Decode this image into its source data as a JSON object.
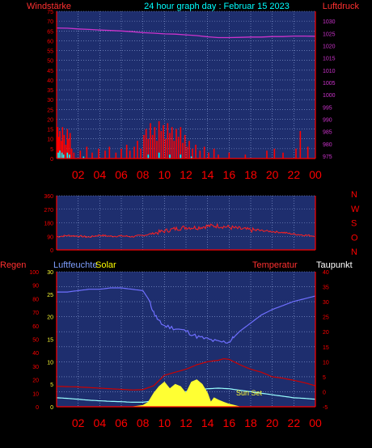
{
  "header": {
    "title": "24 hour graph day : Februar 15 2023",
    "left_label": "Windstärke",
    "right_label": "Luftdruck"
  },
  "colors": {
    "panel_bg": "#1e2e6e",
    "grid": "#8fa3d8",
    "axis_red": "#ff0000",
    "pressure": "#cc33cc",
    "wind": "#ff0000",
    "gust": "#00ffff",
    "direction": "#ff2020",
    "humidity": "#6f6fff",
    "temperature": "#cc0000",
    "dewpoint": "#99ffff",
    "solar": "#ffff33",
    "title": "#00ffff",
    "humidity_label": "#7f9fff",
    "solar_label": "#ffff00",
    "temperature_label": "#ff3030",
    "dewpoint_label": "#ffffff"
  },
  "x_tick_labels": [
    "02",
    "04",
    "06",
    "08",
    "10",
    "12",
    "14",
    "16",
    "18",
    "20",
    "22",
    "00"
  ],
  "chart_data": [
    {
      "type": "line",
      "name": "wind-pressure",
      "y_left": {
        "ticks": [
          "0",
          "5",
          "10",
          "15",
          "20",
          "25",
          "30",
          "35",
          "40",
          "45",
          "50",
          "55",
          "60",
          "65",
          "70",
          "75"
        ],
        "range": [
          0,
          75
        ]
      },
      "y_right": {
        "ticks": [
          "975",
          "980",
          "985",
          "990",
          "995",
          "1000",
          "1005",
          "1010",
          "1015",
          "1020",
          "1025",
          "1030"
        ],
        "range": [
          974,
          1034
        ]
      },
      "series": [
        {
          "key": "pressure",
          "axis": "right",
          "points": [
            [
              0,
              1027.2
            ],
            [
              1,
              1027.1
            ],
            [
              2,
              1026.8
            ],
            [
              3,
              1026.6
            ],
            [
              4,
              1026.4
            ],
            [
              5,
              1026.2
            ],
            [
              6,
              1026.0
            ],
            [
              7,
              1025.7
            ],
            [
              8,
              1025.3
            ],
            [
              9,
              1025.1
            ],
            [
              10,
              1024.8
            ],
            [
              11,
              1024.7
            ],
            [
              12,
              1024.4
            ],
            [
              13,
              1024.1
            ],
            [
              14,
              1023.6
            ],
            [
              15,
              1023.3
            ],
            [
              16,
              1023.3
            ],
            [
              17,
              1023.4
            ],
            [
              18,
              1023.5
            ],
            [
              19,
              1023.5
            ],
            [
              20,
              1023.7
            ],
            [
              21,
              1023.7
            ],
            [
              22,
              1023.9
            ],
            [
              23,
              1023.9
            ],
            [
              24,
              1023.8
            ]
          ]
        },
        {
          "key": "wind",
          "axis": "left",
          "style": "bars",
          "points": [
            [
              0.1,
              16
            ],
            [
              0.2,
              11
            ],
            [
              0.3,
              14
            ],
            [
              0.45,
              9
            ],
            [
              0.55,
              16
            ],
            [
              0.7,
              12
            ],
            [
              0.85,
              7
            ],
            [
              1.0,
              15
            ],
            [
              1.1,
              10
            ],
            [
              1.25,
              13
            ],
            [
              1.4,
              5
            ],
            [
              1.6,
              3
            ],
            [
              2.2,
              4
            ],
            [
              2.8,
              6
            ],
            [
              3.3,
              3
            ],
            [
              3.9,
              5
            ],
            [
              4.5,
              4
            ],
            [
              4.9,
              6
            ],
            [
              5.5,
              3
            ],
            [
              6.0,
              5
            ],
            [
              6.5,
              7
            ],
            [
              6.8,
              4
            ],
            [
              7.2,
              6
            ],
            [
              7.5,
              9
            ],
            [
              7.8,
              5
            ],
            [
              8.1,
              12
            ],
            [
              8.3,
              15
            ],
            [
              8.5,
              10
            ],
            [
              8.7,
              18
            ],
            [
              8.9,
              12
            ],
            [
              9.1,
              16
            ],
            [
              9.3,
              9
            ],
            [
              9.5,
              19
            ],
            [
              9.7,
              14
            ],
            [
              9.9,
              17
            ],
            [
              10.1,
              10
            ],
            [
              10.3,
              18
            ],
            [
              10.5,
              13
            ],
            [
              10.7,
              16
            ],
            [
              10.9,
              9
            ],
            [
              11.1,
              15
            ],
            [
              11.3,
              11
            ],
            [
              11.5,
              16
            ],
            [
              11.7,
              8
            ],
            [
              11.9,
              12
            ],
            [
              12.1,
              6
            ],
            [
              12.3,
              9
            ],
            [
              12.6,
              5
            ],
            [
              12.9,
              7
            ],
            [
              13.3,
              4
            ],
            [
              13.7,
              6
            ],
            [
              14.1,
              3
            ],
            [
              14.6,
              5
            ],
            [
              15.0,
              2
            ],
            [
              16.0,
              3
            ],
            [
              17.5,
              2
            ],
            [
              19.5,
              4
            ],
            [
              20.2,
              5
            ],
            [
              21.0,
              3
            ],
            [
              22.2,
              5
            ],
            [
              22.6,
              14
            ],
            [
              23.3,
              6
            ]
          ]
        },
        {
          "key": "gust",
          "axis": "left",
          "style": "bars",
          "points": [
            [
              0.15,
              3
            ],
            [
              0.3,
              4
            ],
            [
              0.5,
              3
            ],
            [
              0.65,
              2
            ],
            [
              1.0,
              3
            ],
            [
              1.2,
              2
            ],
            [
              2.5,
              1
            ],
            [
              8.5,
              2
            ],
            [
              9.5,
              3
            ],
            [
              10.5,
              2
            ],
            [
              11.5,
              2
            ],
            [
              12.5,
              1
            ]
          ]
        }
      ]
    },
    {
      "type": "scatter",
      "name": "wind-direction",
      "y_left": {
        "ticks": [
          "0",
          "90",
          "180",
          "270",
          "360"
        ],
        "range": [
          0,
          360
        ]
      },
      "y_right": {
        "ticks": [
          "N",
          "W",
          "S",
          "O",
          "N"
        ]
      },
      "series": [
        {
          "key": "direction",
          "axis": "left",
          "points": [
            [
              0,
              88
            ],
            [
              1,
              95
            ],
            [
              2,
              92
            ],
            [
              3,
              85
            ],
            [
              4,
              98
            ],
            [
              5,
              90
            ],
            [
              6,
              93
            ],
            [
              7,
              88
            ],
            [
              8,
              96
            ],
            [
              9,
              110
            ],
            [
              10,
              125
            ],
            [
              11,
              140
            ],
            [
              12,
              150
            ],
            [
              13,
              148
            ],
            [
              14,
              158
            ],
            [
              15,
              160
            ],
            [
              16,
              150
            ],
            [
              17,
              140
            ],
            [
              18,
              132
            ],
            [
              19,
              128
            ],
            [
              20,
              122
            ],
            [
              21,
              115
            ],
            [
              22,
              105
            ],
            [
              23,
              98
            ],
            [
              24,
              92
            ]
          ]
        }
      ]
    },
    {
      "type": "line",
      "name": "humidity-temperature-solar",
      "labels": {
        "regen": "Regen",
        "luftfeuchte": "Luftfeuchte",
        "solar": "Solar",
        "temperatur": "Temperatur",
        "taupunkt": "Taupunkt"
      },
      "y_humidity": {
        "ticks": [
          "0",
          "10",
          "20",
          "30",
          "40",
          "50",
          "60",
          "70",
          "80",
          "90",
          "100"
        ],
        "range": [
          0,
          100
        ]
      },
      "y_solar": {
        "ticks": [
          "0",
          "5",
          "10",
          "15",
          "20",
          "25",
          "30"
        ],
        "range": [
          0,
          30
        ]
      },
      "y_temp": {
        "ticks": [
          "-5",
          "0",
          "5",
          "10",
          "15",
          "20",
          "25",
          "30",
          "35",
          "40"
        ],
        "range": [
          -5,
          40
        ]
      },
      "annotation": "Sun Set",
      "series": [
        {
          "key": "humidity",
          "axis": "humidity",
          "points": [
            [
              0,
              85
            ],
            [
              1,
              85
            ],
            [
              2,
              86
            ],
            [
              3,
              87
            ],
            [
              4,
              87
            ],
            [
              5,
              88
            ],
            [
              6,
              88
            ],
            [
              7,
              87
            ],
            [
              8,
              86
            ],
            [
              8.5,
              80
            ],
            [
              9,
              70
            ],
            [
              9.5,
              63
            ],
            [
              10,
              60
            ],
            [
              11,
              58
            ],
            [
              12,
              56
            ],
            [
              13,
              52
            ],
            [
              14,
              50
            ],
            [
              15,
              48
            ],
            [
              16,
              48
            ],
            [
              16.5,
              52
            ],
            [
              17,
              56
            ],
            [
              18,
              62
            ],
            [
              19,
              68
            ],
            [
              20,
              72
            ],
            [
              21,
              75
            ],
            [
              22,
              78
            ],
            [
              23,
              80
            ],
            [
              24,
              82
            ]
          ]
        },
        {
          "key": "temperature",
          "axis": "temp",
          "points": [
            [
              0,
              1.8
            ],
            [
              1,
              1.7
            ],
            [
              2,
              1.6
            ],
            [
              3,
              1.4
            ],
            [
              4,
              1.2
            ],
            [
              5,
              1.0
            ],
            [
              6,
              0.8
            ],
            [
              7,
              0.6
            ],
            [
              8,
              0.7
            ],
            [
              9,
              2.0
            ],
            [
              10,
              5.5
            ],
            [
              11,
              6.5
            ],
            [
              12,
              7.5
            ],
            [
              13,
              9.0
            ],
            [
              14,
              10.0
            ],
            [
              15,
              10.5
            ],
            [
              15.5,
              11
            ],
            [
              16,
              10.8
            ],
            [
              17,
              9.0
            ],
            [
              18,
              7.5
            ],
            [
              19,
              6.5
            ],
            [
              20,
              5.0
            ],
            [
              21,
              4.5
            ],
            [
              22,
              3.8
            ],
            [
              23,
              3.0
            ],
            [
              24,
              2.0
            ]
          ]
        },
        {
          "key": "dewpoint",
          "axis": "temp",
          "points": [
            [
              0,
              -2.0
            ],
            [
              1,
              -2.2
            ],
            [
              2,
              -2.5
            ],
            [
              3,
              -2.8
            ],
            [
              4,
              -3.0
            ],
            [
              5,
              -3.2
            ],
            [
              6,
              -3.3
            ],
            [
              7,
              -3.5
            ],
            [
              8,
              -3.5
            ],
            [
              9,
              -3.0
            ],
            [
              10,
              -1.5
            ],
            [
              11,
              -0.5
            ],
            [
              12,
              0.0
            ],
            [
              13,
              0.5
            ],
            [
              14,
              1.0
            ],
            [
              15,
              1.2
            ],
            [
              16,
              1.0
            ],
            [
              17,
              0.5
            ],
            [
              18,
              0.0
            ],
            [
              19,
              -0.5
            ],
            [
              20,
              -1.0
            ],
            [
              21,
              -1.5
            ],
            [
              22,
              -2.0
            ],
            [
              23,
              -2.2
            ],
            [
              24,
              -2.5
            ]
          ]
        },
        {
          "key": "solar",
          "axis": "solar",
          "style": "area",
          "points": [
            [
              7,
              0
            ],
            [
              8,
              0.3
            ],
            [
              8.5,
              1
            ],
            [
              9,
              3
            ],
            [
              9.5,
              4.5
            ],
            [
              10,
              5.5
            ],
            [
              10.5,
              4
            ],
            [
              11,
              5
            ],
            [
              11.5,
              4.5
            ],
            [
              12,
              3
            ],
            [
              12.5,
              5.5
            ],
            [
              13,
              6
            ],
            [
              13.5,
              5
            ],
            [
              14,
              3
            ],
            [
              14.3,
              1
            ],
            [
              14.6,
              2
            ],
            [
              15,
              1.5
            ],
            [
              15.5,
              1
            ],
            [
              16,
              0.6
            ],
            [
              16.5,
              0.3
            ],
            [
              17,
              0
            ]
          ]
        }
      ]
    }
  ]
}
